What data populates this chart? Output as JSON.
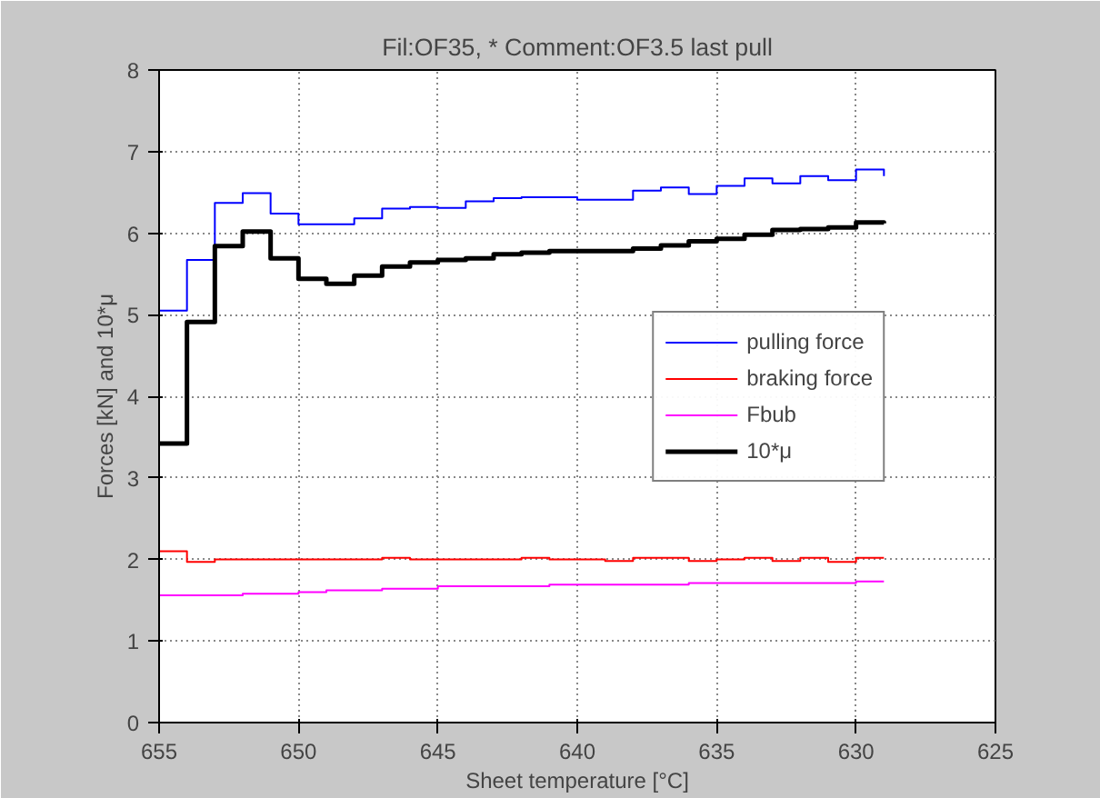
{
  "chart_data": {
    "type": "step",
    "title": "Fil:OF35, * Comment:OF3.5 last pull",
    "xlabel": "Sheet temperature [°C]",
    "ylabel": "Forces [kN] and 10*μ",
    "x": [
      655,
      654,
      653,
      652,
      651,
      650,
      649,
      648,
      647,
      646,
      645,
      644,
      643,
      642,
      641,
      640,
      639,
      638,
      637,
      636,
      635,
      634,
      633,
      632,
      631,
      630,
      629
    ],
    "xlim": [
      655,
      625
    ],
    "xticks": [
      655,
      650,
      645,
      640,
      635,
      630,
      625
    ],
    "ylim": [
      0,
      8
    ],
    "yticks": [
      0,
      1,
      2,
      3,
      4,
      5,
      6,
      7,
      8
    ],
    "grid": true,
    "legend": "right",
    "line_style": "solid",
    "series": [
      {
        "name": "pulling force",
        "color": "#0000ff",
        "values": [
          5.05,
          5.67,
          6.37,
          6.49,
          6.24,
          6.11,
          6.11,
          6.18,
          6.3,
          6.32,
          6.31,
          6.39,
          6.43,
          6.44,
          6.44,
          6.41,
          6.41,
          6.52,
          6.56,
          6.48,
          6.58,
          6.67,
          6.61,
          6.7,
          6.65,
          6.78,
          6.7
        ]
      },
      {
        "name": "braking force",
        "color": "#ff0000",
        "values": [
          2.1,
          1.97,
          2.0,
          2.0,
          2.0,
          2.0,
          2.0,
          2.0,
          2.02,
          2.0,
          2.0,
          2.0,
          2.0,
          2.02,
          2.0,
          2.0,
          1.98,
          2.02,
          2.02,
          1.98,
          2.0,
          2.02,
          1.98,
          2.02,
          1.97,
          2.02,
          2.02
        ]
      },
      {
        "name": "Fbub",
        "color": "#ff00ff",
        "values": [
          1.56,
          1.56,
          1.56,
          1.58,
          1.58,
          1.6,
          1.62,
          1.62,
          1.64,
          1.64,
          1.67,
          1.67,
          1.67,
          1.67,
          1.69,
          1.69,
          1.69,
          1.69,
          1.69,
          1.71,
          1.71,
          1.71,
          1.71,
          1.71,
          1.71,
          1.73,
          1.73
        ]
      },
      {
        "name": "10*μ",
        "color": "#000000",
        "values": [
          3.42,
          4.91,
          5.84,
          6.02,
          5.69,
          5.44,
          5.38,
          5.48,
          5.59,
          5.64,
          5.67,
          5.69,
          5.74,
          5.76,
          5.78,
          5.78,
          5.78,
          5.81,
          5.85,
          5.9,
          5.93,
          5.98,
          6.04,
          6.05,
          6.07,
          6.13,
          6.12
        ]
      }
    ]
  }
}
